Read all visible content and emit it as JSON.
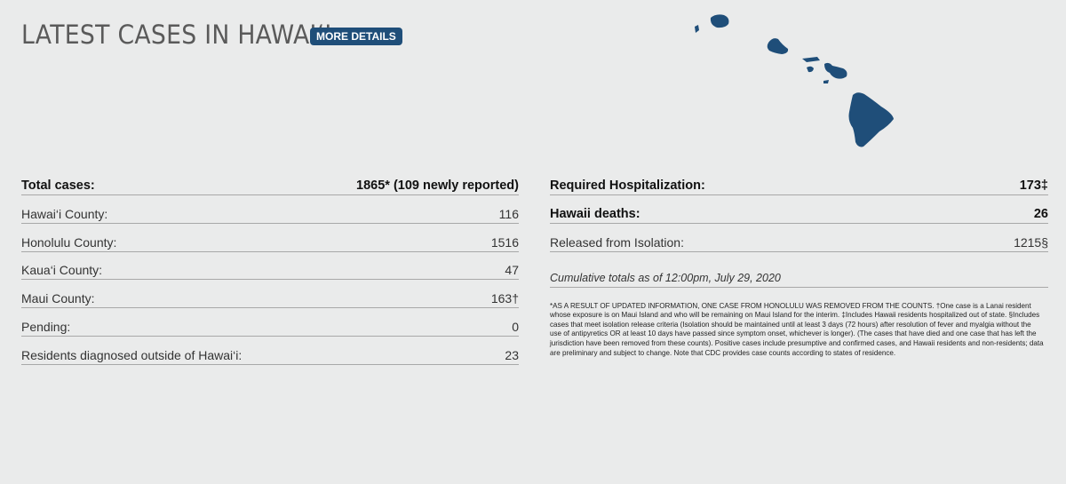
{
  "header": {
    "title": "LATEST CASES IN HAWAI‘I",
    "more_details_label": "MORE DETAILS"
  },
  "colors": {
    "accent": "#1f4e79",
    "background": "#eaebeb",
    "map": "#1f4e79"
  },
  "left_table": {
    "rows": [
      {
        "label": "Total cases:",
        "value": "1865* (109 newly reported)"
      },
      {
        "label": "Hawai‘i County:",
        "value": "116"
      },
      {
        "label": "Honolulu County:",
        "value": "1516"
      },
      {
        "label": "Kaua‘i County:",
        "value": "47"
      },
      {
        "label": "Maui County:",
        "value": "163†"
      },
      {
        "label": "Pending:",
        "value": "0"
      },
      {
        "label": "Residents diagnosed outside of Hawai‘i:",
        "value": "23"
      }
    ]
  },
  "right_table": {
    "rows": [
      {
        "label": "Required Hospitalization:",
        "value": "173‡"
      },
      {
        "label": "Hawaii deaths:",
        "value": "26"
      },
      {
        "label": "Released from Isolation:",
        "value": "1215§"
      }
    ],
    "cumulative": "Cumulative totals as of 12:00pm, July 29, 2020",
    "footnote": "*AS A RESULT OF UPDATED INFORMATION, ONE CASE FROM HONOLULU WAS REMOVED FROM THE COUNTS. †One case is a Lanai resident whose exposure is on Maui Island and who will be remaining on Maui Island for the interim. ‡Includes Hawaii residents hospitalized out of state. §Includes cases that meet isolation release criteria (Isolation should be maintained until at least 3 days (72 hours) after resolution of fever and myalgia without the use of antipyretics OR at least 10 days have passed since symptom onset, whichever is longer). (The cases that have died and one case that has left the jurisdiction have been removed from these counts). Positive cases include presumptive and confirmed cases, and Hawaii residents and non-residents; data are preliminary and subject to change. Note that CDC provides case counts according to states of residence."
  },
  "map": {
    "icon": "hawaii-islands-map-icon"
  }
}
